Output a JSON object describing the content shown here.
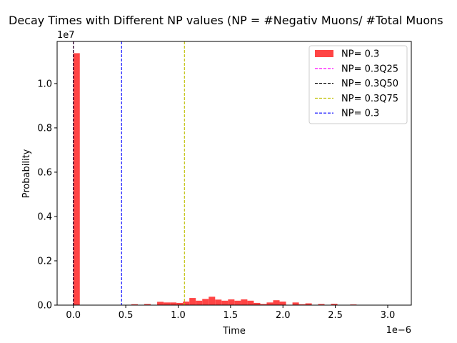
{
  "chart_data": {
    "type": "histogram",
    "title": "Decay Times with Different NP values (NP = #Negativ Muons/ #Total Muons",
    "xlabel": "Time",
    "ylabel": "Probability",
    "x_scale_label": "1e−6",
    "y_scale_label": "1e7",
    "xlim": [
      -0.155,
      3.225
    ],
    "ylim": [
      0,
      11.9
    ],
    "x_ticks": [
      {
        "value": 0.0,
        "label": "0.0"
      },
      {
        "value": 0.5,
        "label": "0.5"
      },
      {
        "value": 1.0,
        "label": "1.0"
      },
      {
        "value": 1.5,
        "label": "1.5"
      },
      {
        "value": 2.0,
        "label": "2.0"
      },
      {
        "value": 2.5,
        "label": "2.5"
      },
      {
        "value": 3.0,
        "label": "3.0"
      }
    ],
    "y_ticks": [
      {
        "value": 0.0,
        "label": "0.0"
      },
      {
        "value": 2.0,
        "label": "0.2"
      },
      {
        "value": 4.0,
        "label": "0.4"
      },
      {
        "value": 6.0,
        "label": "0.6"
      },
      {
        "value": 8.0,
        "label": "0.8"
      },
      {
        "value": 10.0,
        "label": "1.0"
      }
    ],
    "histogram": {
      "name": "NP= 0.3",
      "color": "#ff4444",
      "bin_width": 0.0615,
      "bins": [
        {
          "x0": 0.0,
          "y": 11.37
        },
        {
          "x0": 0.5535,
          "y": 0.04
        },
        {
          "x0": 0.6765,
          "y": 0.05
        },
        {
          "x0": 0.7995,
          "y": 0.15
        },
        {
          "x0": 0.861,
          "y": 0.12
        },
        {
          "x0": 0.9225,
          "y": 0.12
        },
        {
          "x0": 0.984,
          "y": 0.1
        },
        {
          "x0": 1.0455,
          "y": 0.16
        },
        {
          "x0": 1.107,
          "y": 0.32
        },
        {
          "x0": 1.1685,
          "y": 0.2
        },
        {
          "x0": 1.23,
          "y": 0.28
        },
        {
          "x0": 1.2915,
          "y": 0.38
        },
        {
          "x0": 1.353,
          "y": 0.25
        },
        {
          "x0": 1.4145,
          "y": 0.2
        },
        {
          "x0": 1.476,
          "y": 0.26
        },
        {
          "x0": 1.5375,
          "y": 0.2
        },
        {
          "x0": 1.599,
          "y": 0.26
        },
        {
          "x0": 1.6605,
          "y": 0.2
        },
        {
          "x0": 1.722,
          "y": 0.1
        },
        {
          "x0": 1.7835,
          "y": 0.05
        },
        {
          "x0": 1.845,
          "y": 0.12
        },
        {
          "x0": 1.9065,
          "y": 0.22
        },
        {
          "x0": 1.968,
          "y": 0.16
        },
        {
          "x0": 2.091,
          "y": 0.12
        },
        {
          "x0": 2.1525,
          "y": 0.04
        },
        {
          "x0": 2.214,
          "y": 0.08
        },
        {
          "x0": 2.3355,
          "y": 0.05
        },
        {
          "x0": 2.4585,
          "y": 0.06
        },
        {
          "x0": 2.6415,
          "y": 0.03
        }
      ]
    },
    "vlines": [
      {
        "name": "NP= 0.3Q25",
        "x": 0.0,
        "color": "#ff00ff"
      },
      {
        "name": "NP= 0.3Q50",
        "x": 0.0,
        "color": "#000000"
      },
      {
        "name": "NP= 0.3Q75",
        "x": 1.06,
        "color": "#bfbf00"
      },
      {
        "name": "NP= 0.3",
        "x": 0.46,
        "color": "#0000ff"
      }
    ],
    "legend": {
      "position": "top-right",
      "entries": [
        {
          "label": "NP= 0.3",
          "kind": "patch",
          "color": "#ff4444"
        },
        {
          "label": "NP= 0.3Q25",
          "kind": "dash",
          "color": "#ff00ff"
        },
        {
          "label": "NP= 0.3Q50",
          "kind": "dash",
          "color": "#000000"
        },
        {
          "label": "NP= 0.3Q75",
          "kind": "dash",
          "color": "#bfbf00"
        },
        {
          "label": "NP= 0.3",
          "kind": "dash",
          "color": "#0000ff"
        }
      ]
    },
    "grid": false
  }
}
